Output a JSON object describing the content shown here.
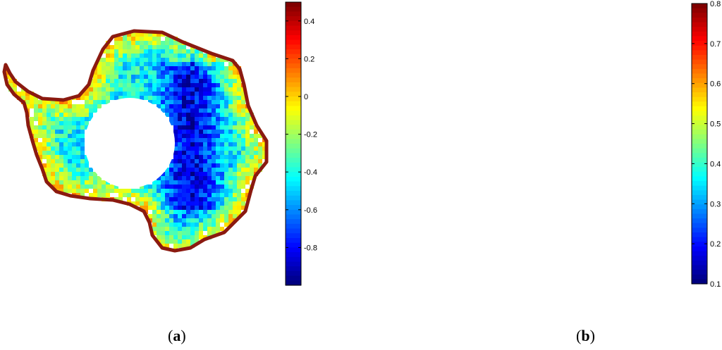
{
  "panels": [
    {
      "id": "a",
      "caption_letter": "a",
      "colorbar": {
        "min": -1.0,
        "max": 0.5,
        "ticks": [
          {
            "value": 0.4,
            "label": "0.4"
          },
          {
            "value": 0.2,
            "label": "0.2"
          },
          {
            "value": 0,
            "label": "0"
          },
          {
            "value": -0.2,
            "label": "-0.2"
          },
          {
            "value": -0.4,
            "label": "-0.4"
          },
          {
            "value": -0.6,
            "label": "-0.6"
          },
          {
            "value": -0.8,
            "label": "-0.8"
          }
        ]
      },
      "map_style": "low",
      "border_color": "#8b1a10"
    },
    {
      "id": "b",
      "caption_letter": "b",
      "colorbar": {
        "min": 0.1,
        "max": 0.8,
        "ticks": [
          {
            "value": 0.8,
            "label": "0.8"
          },
          {
            "value": 0.7,
            "label": "0.7"
          },
          {
            "value": 0.6,
            "label": "0.6"
          },
          {
            "value": 0.5,
            "label": "0.5"
          },
          {
            "value": 0.4,
            "label": "0.4"
          },
          {
            "value": 0.3,
            "label": "0.3"
          },
          {
            "value": 0.2,
            "label": "0.2"
          },
          {
            "value": 0.1,
            "label": "0.1"
          }
        ]
      },
      "map_style": "high",
      "border_color": "#8b1a10"
    }
  ],
  "colormap": "jet"
}
